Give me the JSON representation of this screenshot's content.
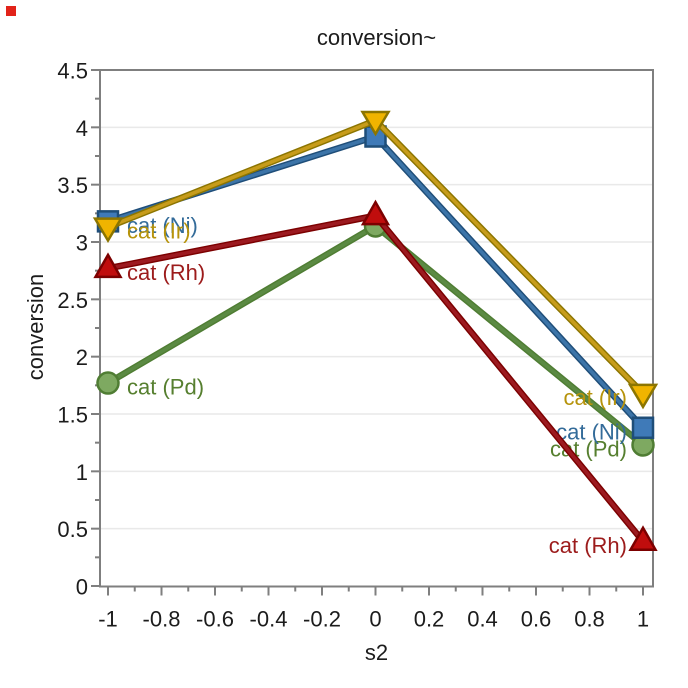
{
  "window": {
    "background": "#ffffff"
  },
  "decorations": {
    "red_corner_marker_color": "#e2231a"
  },
  "axis_style": {
    "frame_color": "#7f7f7f",
    "grid_color": "#e9e9e9",
    "text_color": "#1c1c1c"
  },
  "chart_data": {
    "type": "line",
    "title": "conversion~",
    "xlabel": "s2",
    "ylabel": "conversion",
    "x": [
      -1,
      0,
      1
    ],
    "xlim": [
      -1.03,
      1.04
    ],
    "ylim": [
      0,
      4.5
    ],
    "grid": "horizontal-major-only",
    "legend": "inline-point-labels-both-ends",
    "x_ticks": {
      "major_step": 0.2,
      "minor_step": 0.1,
      "min": -1,
      "max": 1,
      "labels": [
        "-1",
        "-0.8",
        "-0.6",
        "-0.4",
        "-0.2",
        "0",
        "0.2",
        "0.4",
        "0.6",
        "0.8",
        "1"
      ]
    },
    "y_ticks": {
      "major_step": 0.5,
      "minor_step": 0.25,
      "min": 0,
      "max": 4.5,
      "labels": [
        "0",
        "0.5",
        "1",
        "1.5",
        "2",
        "2.5",
        "3",
        "3.5",
        "4",
        "4.5"
      ]
    },
    "series": [
      {
        "name": "cat (Pd)",
        "marker": "circle",
        "values": [
          1.77,
          3.14,
          1.23
        ],
        "line_color": "#5b8a43",
        "marker_fill": "#7ea961",
        "edge_color": "#4f7d33",
        "label_color": "#567f2f"
      },
      {
        "name": "cat (Ni)",
        "marker": "square",
        "values": [
          3.18,
          3.92,
          1.38
        ],
        "line_color": "#3c74a8",
        "marker_fill": "#3f7ab8",
        "edge_color": "#1f4e79",
        "label_color": "#336b99"
      },
      {
        "name": "cat (Ir)",
        "marker": "triangle-down",
        "values": [
          3.13,
          4.06,
          1.68
        ],
        "line_color": "#c79c1b",
        "marker_fill": "#f0b400",
        "edge_color": "#8c7500",
        "label_color": "#b6930b"
      },
      {
        "name": "cat (Rh)",
        "marker": "triangle-up",
        "values": [
          2.77,
          3.23,
          0.39
        ],
        "line_color": "#9c1a20",
        "marker_fill": "#c00d0d",
        "edge_color": "#7c0000",
        "label_color": "#9c1b1b"
      }
    ]
  }
}
